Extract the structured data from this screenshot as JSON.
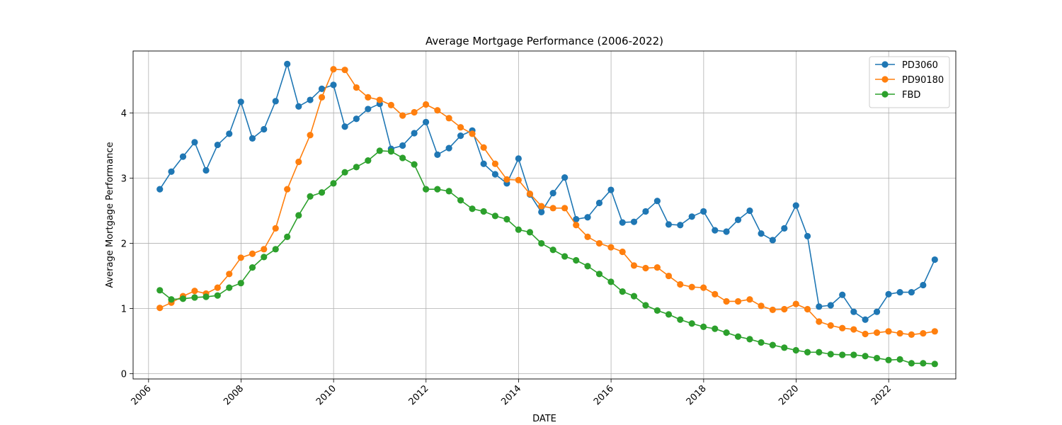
{
  "chart_data": {
    "type": "line",
    "title": "Average Mortgage Performance (2006-2022)",
    "xlabel": "DATE",
    "ylabel": "Average Mortgage Performance",
    "xlim": [
      "2005-09-01",
      "2023-06-15"
    ],
    "ylim": [
      -0.08,
      4.95
    ],
    "x_ticks": [
      "2006",
      "2008",
      "2010",
      "2012",
      "2014",
      "2016",
      "2018",
      "2020",
      "2022"
    ],
    "y_ticks": [
      "0",
      "1",
      "2",
      "3",
      "4"
    ],
    "grid": true,
    "legend_position": "top-right",
    "x": [
      "2006-03-31",
      "2006-06-30",
      "2006-09-30",
      "2006-12-31",
      "2007-03-31",
      "2007-06-30",
      "2007-09-30",
      "2007-12-31",
      "2008-03-31",
      "2008-06-30",
      "2008-09-30",
      "2008-12-31",
      "2009-03-31",
      "2009-06-30",
      "2009-09-30",
      "2009-12-31",
      "2010-03-31",
      "2010-06-30",
      "2010-09-30",
      "2010-12-31",
      "2011-03-31",
      "2011-06-30",
      "2011-09-30",
      "2011-12-31",
      "2012-03-31",
      "2012-06-30",
      "2012-09-30",
      "2012-12-31",
      "2013-03-31",
      "2013-06-30",
      "2013-09-30",
      "2013-12-31",
      "2014-03-31",
      "2014-06-30",
      "2014-09-30",
      "2014-12-31",
      "2015-03-31",
      "2015-06-30",
      "2015-09-30",
      "2015-12-31",
      "2016-03-31",
      "2016-06-30",
      "2016-09-30",
      "2016-12-31",
      "2017-03-31",
      "2017-06-30",
      "2017-09-30",
      "2017-12-31",
      "2018-03-31",
      "2018-06-30",
      "2018-09-30",
      "2018-12-31",
      "2019-03-31",
      "2019-06-30",
      "2019-09-30",
      "2019-12-31",
      "2020-03-31",
      "2020-06-30",
      "2020-09-30",
      "2020-12-31",
      "2021-03-31",
      "2021-06-30",
      "2021-09-30",
      "2021-12-31",
      "2022-03-31",
      "2022-06-30",
      "2022-09-30",
      "2022-12-31"
    ],
    "series": [
      {
        "name": "PD3060",
        "color": "#1f77b4",
        "values": [
          2.83,
          3.1,
          3.33,
          3.55,
          3.12,
          3.51,
          3.68,
          4.17,
          3.61,
          3.75,
          4.18,
          4.75,
          4.1,
          4.2,
          4.37,
          4.43,
          3.79,
          3.91,
          4.06,
          4.14,
          3.45,
          3.5,
          3.69,
          3.86,
          3.36,
          3.46,
          3.65,
          3.73,
          3.22,
          3.06,
          2.92,
          3.3,
          2.75,
          2.48,
          2.77,
          3.01,
          2.37,
          2.4,
          2.62,
          2.82,
          2.32,
          2.33,
          2.49,
          2.65,
          2.29,
          2.28,
          2.41,
          2.49,
          2.2,
          2.18,
          2.36,
          2.5,
          2.15,
          2.05,
          2.23,
          2.58,
          2.11,
          1.03,
          1.05,
          1.21,
          0.95,
          0.83,
          0.95,
          1.22,
          1.25,
          1.25,
          1.36,
          1.75
        ]
      },
      {
        "name": "PD90180",
        "color": "#ff7f0e",
        "values": [
          1.01,
          1.09,
          1.19,
          1.27,
          1.23,
          1.32,
          1.53,
          1.78,
          1.84,
          1.91,
          2.23,
          2.83,
          3.25,
          3.66,
          4.24,
          4.67,
          4.66,
          4.39,
          4.24,
          4.2,
          4.12,
          3.96,
          4.01,
          4.13,
          4.04,
          3.92,
          3.78,
          3.68,
          3.47,
          3.22,
          2.98,
          2.97,
          2.76,
          2.57,
          2.54,
          2.54,
          2.28,
          2.1,
          2.0,
          1.94,
          1.87,
          1.66,
          1.62,
          1.63,
          1.5,
          1.37,
          1.33,
          1.32,
          1.22,
          1.11,
          1.11,
          1.14,
          1.04,
          0.98,
          0.99,
          1.07,
          0.99,
          0.8,
          0.74,
          0.7,
          0.68,
          0.61,
          0.63,
          0.65,
          0.62,
          0.6,
          0.62,
          0.65
        ]
      },
      {
        "name": "FBD",
        "color": "#2ca02c",
        "values": [
          1.28,
          1.14,
          1.15,
          1.17,
          1.18,
          1.2,
          1.32,
          1.39,
          1.63,
          1.79,
          1.91,
          2.1,
          2.43,
          2.72,
          2.78,
          2.92,
          3.09,
          3.17,
          3.27,
          3.42,
          3.41,
          3.31,
          3.21,
          2.83,
          2.83,
          2.8,
          2.66,
          2.53,
          2.49,
          2.42,
          2.37,
          2.21,
          2.17,
          2.0,
          1.9,
          1.8,
          1.74,
          1.65,
          1.53,
          1.41,
          1.26,
          1.19,
          1.05,
          0.97,
          0.91,
          0.83,
          0.77,
          0.72,
          0.69,
          0.63,
          0.57,
          0.53,
          0.48,
          0.44,
          0.4,
          0.36,
          0.33,
          0.33,
          0.3,
          0.29,
          0.29,
          0.27,
          0.24,
          0.21,
          0.22,
          0.16,
          0.16,
          0.15
        ]
      }
    ]
  }
}
